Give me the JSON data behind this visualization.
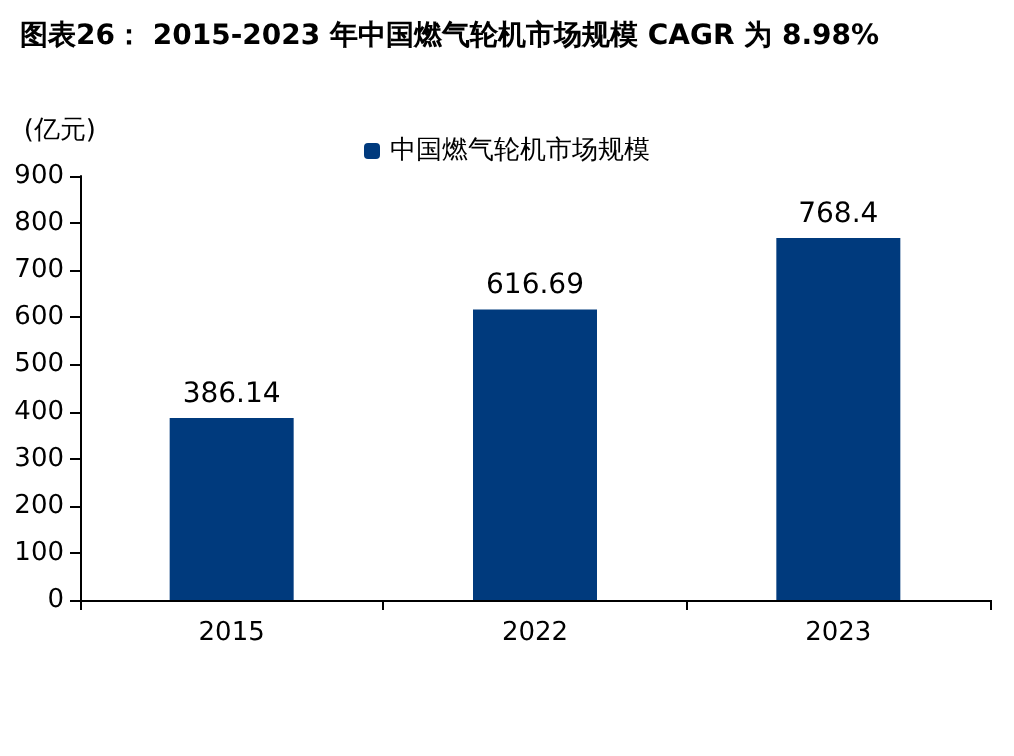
{
  "chart_data": {
    "type": "bar",
    "title": "图表26： 2015-2023 年中国燃气轮机市场规模 CAGR 为 8.98%",
    "ylabel": "(亿元)",
    "categories": [
      "2015",
      "2022",
      "2023"
    ],
    "series": [
      {
        "name": "中国燃气轮机市场规模",
        "color": "#003a7d",
        "values": [
          386.14,
          616.69,
          768.4
        ]
      }
    ],
    "ylim": [
      0,
      900
    ],
    "yticks": [
      0,
      100,
      200,
      300,
      400,
      500,
      600,
      700,
      800,
      900
    ],
    "data_labels": true,
    "grid": false,
    "legend": "top"
  }
}
